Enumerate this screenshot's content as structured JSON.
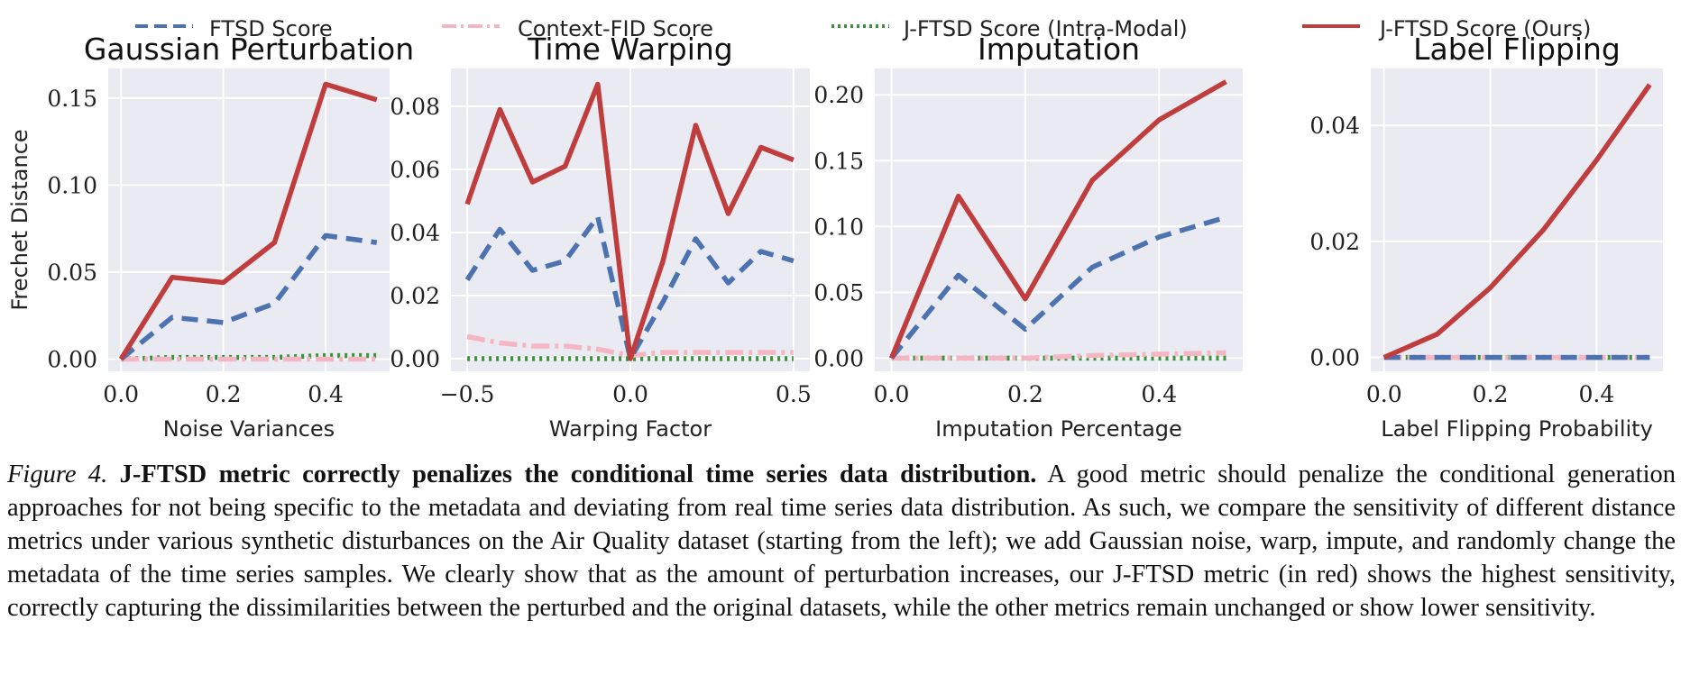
{
  "legend": [
    {
      "name": "FTSD Score",
      "color": "#4c72b0",
      "style": "dashed"
    },
    {
      "name": "Context-FID Score",
      "color": "#f4b6c2",
      "style": "dashdot"
    },
    {
      "name": "J-FTSD Score (Intra-Modal)",
      "color": "#3a923a",
      "style": "dotted"
    },
    {
      "name": "J-FTSD Score (Ours)",
      "color": "#c03d3e",
      "style": "solid"
    }
  ],
  "colors": {
    "plot_bg": "#eaeaf2",
    "grid": "#ffffff"
  },
  "chart_data": [
    {
      "type": "line",
      "title": "Gaussian Perturbation",
      "xlabel": "Noise Variances",
      "ylabel": "Frechet Distance",
      "x": [
        0.0,
        0.1,
        0.2,
        0.3,
        0.4,
        0.5
      ],
      "xlim": [
        -0.025,
        0.525
      ],
      "ylim": [
        -0.007,
        0.167
      ],
      "xticks": [
        0.0,
        0.2,
        0.4
      ],
      "xtick_labels": [
        "0.0",
        "0.2",
        "0.4"
      ],
      "yticks": [
        0.0,
        0.05,
        0.1,
        0.15
      ],
      "ytick_labels": [
        "0.00",
        "0.05",
        "0.10",
        "0.15"
      ],
      "grid": true,
      "series": [
        {
          "name": "FTSD Score",
          "values": [
            0.0,
            0.024,
            0.021,
            0.032,
            0.071,
            0.067
          ]
        },
        {
          "name": "Context-FID Score",
          "values": [
            0.0,
            0.0,
            0.0,
            0.0,
            0.0,
            0.0
          ]
        },
        {
          "name": "J-FTSD Score (Intra-Modal)",
          "values": [
            0.0,
            0.001,
            0.001,
            0.001,
            0.002,
            0.002
          ]
        },
        {
          "name": "J-FTSD Score (Ours)",
          "values": [
            0.0,
            0.047,
            0.044,
            0.067,
            0.158,
            0.149
          ]
        }
      ]
    },
    {
      "type": "line",
      "title": "Time Warping",
      "xlabel": "Warping Factor",
      "ylabel": "",
      "x": [
        -0.5,
        -0.4,
        -0.3,
        -0.2,
        -0.1,
        0.0,
        0.1,
        0.2,
        0.3,
        0.4,
        0.5
      ],
      "xlim": [
        -0.55,
        0.55
      ],
      "ylim": [
        -0.004,
        0.092
      ],
      "xticks": [
        -0.5,
        0.0,
        0.5
      ],
      "xtick_labels": [
        "−0.5",
        "0.0",
        "0.5"
      ],
      "yticks": [
        0.0,
        0.02,
        0.04,
        0.06,
        0.08
      ],
      "ytick_labels": [
        "0.00",
        "0.02",
        "0.04",
        "0.06",
        "0.08"
      ],
      "grid": true,
      "series": [
        {
          "name": "FTSD Score",
          "values": [
            0.025,
            0.041,
            0.028,
            0.031,
            0.045,
            0.0,
            0.018,
            0.038,
            0.024,
            0.034,
            0.031
          ]
        },
        {
          "name": "Context-FID Score",
          "values": [
            0.007,
            0.005,
            0.004,
            0.004,
            0.003,
            0.001,
            0.002,
            0.002,
            0.002,
            0.002,
            0.002
          ]
        },
        {
          "name": "J-FTSD Score (Intra-Modal)",
          "values": [
            0.0,
            0.0,
            0.0,
            0.0,
            0.0,
            0.0,
            0.0,
            0.0,
            0.0,
            0.0,
            0.0
          ]
        },
        {
          "name": "J-FTSD Score (Ours)",
          "values": [
            0.049,
            0.079,
            0.056,
            0.061,
            0.087,
            0.0,
            0.031,
            0.074,
            0.046,
            0.067,
            0.063
          ]
        }
      ]
    },
    {
      "type": "line",
      "title": "Imputation",
      "xlabel": "Imputation Percentage",
      "ylabel": "",
      "x": [
        0.0,
        0.1,
        0.2,
        0.3,
        0.4,
        0.5
      ],
      "xlim": [
        -0.025,
        0.525
      ],
      "ylim": [
        -0.01,
        0.22
      ],
      "xticks": [
        0.0,
        0.2,
        0.4
      ],
      "xtick_labels": [
        "0.0",
        "0.2",
        "0.4"
      ],
      "yticks": [
        0.0,
        0.05,
        0.1,
        0.15,
        0.2
      ],
      "ytick_labels": [
        "0.00",
        "0.05",
        "0.10",
        "0.15",
        "0.20"
      ],
      "grid": true,
      "series": [
        {
          "name": "FTSD Score",
          "values": [
            0.0,
            0.063,
            0.022,
            0.069,
            0.092,
            0.107
          ]
        },
        {
          "name": "Context-FID Score",
          "values": [
            0.0,
            0.0,
            0.0,
            0.002,
            0.003,
            0.004
          ]
        },
        {
          "name": "J-FTSD Score (Intra-Modal)",
          "values": [
            0.0,
            0.0,
            0.0,
            0.0,
            0.0,
            0.0
          ]
        },
        {
          "name": "J-FTSD Score (Ours)",
          "values": [
            0.0,
            0.123,
            0.045,
            0.135,
            0.181,
            0.21
          ]
        }
      ]
    },
    {
      "type": "line",
      "title": "Label Flipping",
      "xlabel": "Label Flipping Probability",
      "ylabel": "",
      "x": [
        0.0,
        0.1,
        0.2,
        0.3,
        0.4,
        0.5
      ],
      "xlim": [
        -0.025,
        0.525
      ],
      "ylim": [
        -0.0024,
        0.0498
      ],
      "xticks": [
        0.0,
        0.2,
        0.4
      ],
      "xtick_labels": [
        "0.0",
        "0.2",
        "0.4"
      ],
      "yticks": [
        0.0,
        0.02,
        0.04
      ],
      "ytick_labels": [
        "0.00",
        "0.02",
        "0.04"
      ],
      "grid": true,
      "series": [
        {
          "name": "FTSD Score",
          "values": [
            0.0,
            0.0,
            0.0,
            0.0,
            0.0,
            0.0
          ]
        },
        {
          "name": "Context-FID Score",
          "values": [
            0.0,
            0.0,
            0.0,
            0.0,
            0.0,
            0.0
          ]
        },
        {
          "name": "J-FTSD Score (Intra-Modal)",
          "values": [
            0.0,
            0.0,
            0.0,
            0.0,
            0.0,
            0.0
          ]
        },
        {
          "name": "J-FTSD Score (Ours)",
          "values": [
            0.0,
            0.004,
            0.012,
            0.022,
            0.034,
            0.047
          ]
        }
      ]
    }
  ],
  "caption": {
    "label": "Figure 4.",
    "title": "J-FTSD metric correctly penalizes the conditional time series data distribution.",
    "text": "A good metric should penalize the conditional generation approaches for not being specific to the metadata and deviating from real time series data distribution. As such, we compare the sensitivity of different distance metrics under various synthetic disturbances on the Air Quality dataset (starting from the left); we add Gaussian noise, warp, impute, and randomly change the metadata of the time series samples. We clearly show that as the amount of perturbation increases, our J-FTSD metric (in red) shows the highest sensitivity, correctly capturing the dissimilarities between the perturbed and the original datasets, while the other metrics remain unchanged or show lower sensitivity."
  }
}
